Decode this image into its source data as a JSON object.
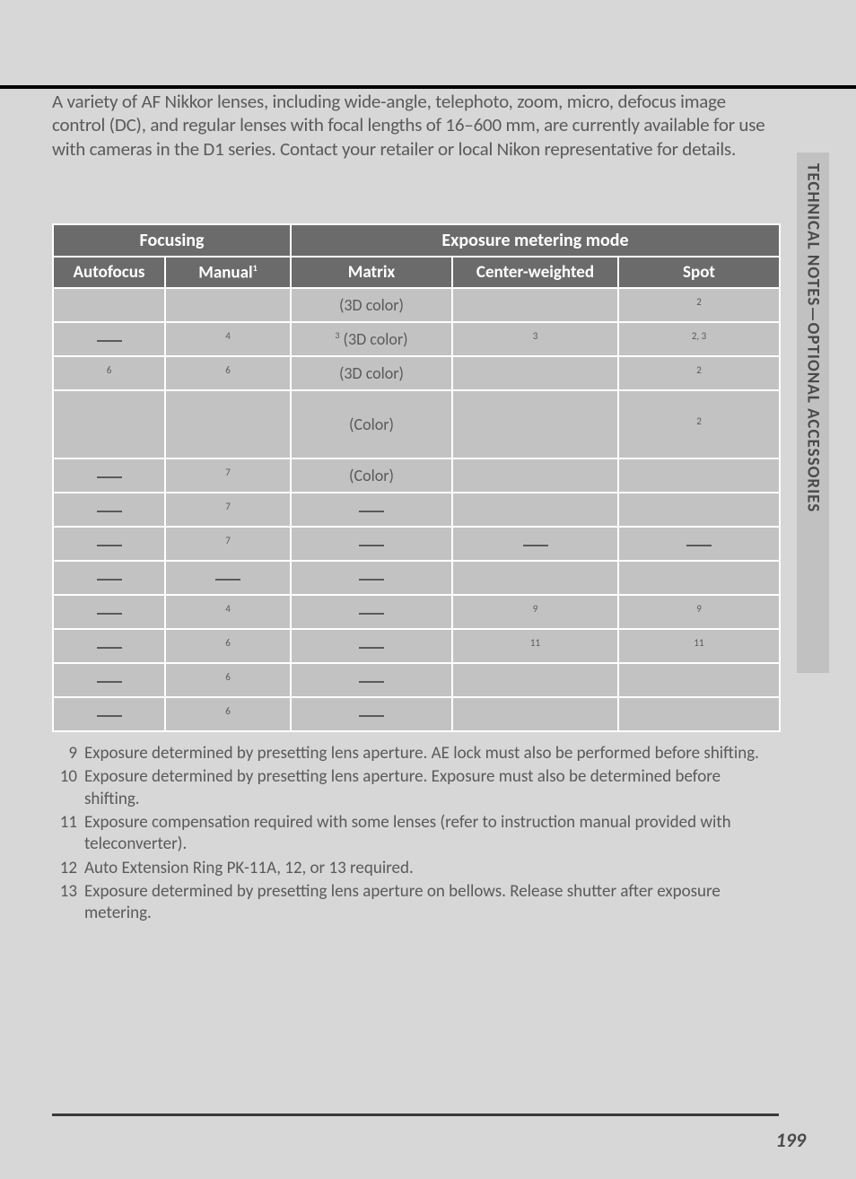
{
  "intro": "A variety of AF Nikkor lenses, including wide-angle, telephoto, zoom, micro, defocus image control (DC), and regular lenses with focal lengths of 16–600 mm, are currently available for use with cameras in the D1 series.  Contact your retailer or local Nikon representative for details.",
  "side_tab": "TECHNICAL NOTES—OPTIONAL ACCESSORIES",
  "table": {
    "group_headers": {
      "focusing": "Focusing",
      "exposure": "Exposure metering mode"
    },
    "sub_headers": {
      "autofocus": "Autofocus",
      "manual": "Manual",
      "manual_sup": "1",
      "matrix": "Matrix",
      "center": "Center-weighted",
      "spot": "Spot"
    },
    "rows": [
      {
        "af": "",
        "mn": "",
        "mx": "(3D color)",
        "cw": "",
        "sp": "2"
      },
      {
        "af": "—",
        "mn": "4",
        "mx": "3 (3D color)",
        "cw": "3",
        "sp": "2, 3"
      },
      {
        "af": "6",
        "mn": "6",
        "mx": "(3D color)",
        "cw": "",
        "sp": "2"
      },
      {
        "af": "",
        "mn": "",
        "mx": "(Color)",
        "cw": "",
        "sp": "2",
        "tall": true
      },
      {
        "af": "—",
        "mn": "7",
        "mx": "(Color)",
        "cw": "",
        "sp": ""
      },
      {
        "af": "—",
        "mn": "7",
        "mx": "—",
        "cw": "",
        "sp": ""
      },
      {
        "af": "—",
        "mn": "7",
        "mx": "—",
        "cw": "—",
        "sp": "—"
      },
      {
        "af": "—",
        "mn": "—",
        "mx": "—",
        "cw": "",
        "sp": ""
      },
      {
        "af": "—",
        "mn": "4",
        "mx": "—",
        "cw": "9",
        "sp": "9"
      },
      {
        "af": "—",
        "mn": "6",
        "mx": "—",
        "cw": "11",
        "sp": "11"
      },
      {
        "af": "—",
        "mn": "6",
        "mx": "—",
        "cw": "",
        "sp": ""
      },
      {
        "af": "—",
        "mn": "6",
        "mx": "—",
        "cw": "",
        "sp": ""
      }
    ]
  },
  "footnotes": [
    {
      "n": "9",
      "t": "Exposure determined by presetting lens aperture.  AE lock must also be performed before shifting."
    },
    {
      "n": "10",
      "t": "Exposure determined by presetting lens aperture.  Exposure must also be determined before shifting."
    },
    {
      "n": "11",
      "t": "Exposure compensation required with some lenses (refer to instruction manual provided with teleconverter)."
    },
    {
      "n": "12",
      "t": "Auto Extension Ring PK-11A, 12, or 13 required."
    },
    {
      "n": "13",
      "t": "Exposure determined by presetting lens aperture on bellows.  Release shutter after exposure metering."
    }
  ],
  "page_number": "199",
  "colors": {
    "page_bg": "#d7d7d7",
    "header_bg": "#6b6b6b",
    "cell_bg": "#c2c2c2",
    "text": "#5a5a5a",
    "side_tab_bg": "#c1c1c1"
  }
}
